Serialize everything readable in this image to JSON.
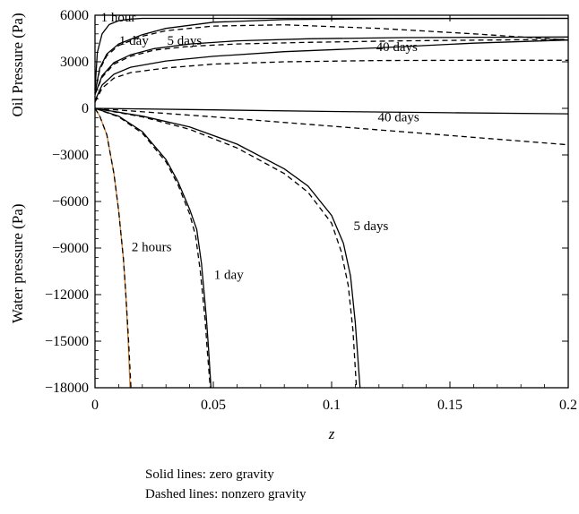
{
  "chart_data": {
    "type": "line",
    "xlabel": "z",
    "xlim": [
      0,
      0.2
    ],
    "x_ticks": [
      "0",
      "0.05",
      "0.1",
      "0.15",
      "0.2"
    ],
    "y_ticks": [
      "6000",
      "3000",
      "0",
      "−3000",
      "−6000",
      "−9000",
      "−12000",
      "−15000",
      "−18000"
    ],
    "ylim": [
      -18000,
      6000
    ],
    "ylabel_upper": "Oil Pressure (Pa)",
    "ylabel_lower": "Water pressure (Pa)",
    "grid": false,
    "annotations": [
      {
        "text": "1 hour",
        "x": 0.0025,
        "y": 5600
      },
      {
        "text": "1 day",
        "x": 0.0102,
        "y": 4100
      },
      {
        "text": "5 days",
        "x": 0.0305,
        "y": 4100
      },
      {
        "text": "40 days",
        "x": 0.1188,
        "y": 3700
      },
      {
        "text": "40 days",
        "x": 0.1195,
        "y": -850
      },
      {
        "text": "5 days",
        "x": 0.1093,
        "y": -7850
      },
      {
        "text": "2 hours",
        "x": 0.0155,
        "y": -9200
      },
      {
        "text": "1 day",
        "x": 0.0503,
        "y": -11000
      }
    ],
    "series": [
      {
        "label": "1 hour",
        "style": "solid",
        "x": [
          0,
          0.001,
          0.003,
          0.006,
          0.01,
          0.015,
          0.02,
          0.2
        ],
        "y": [
          1200,
          3600,
          4800,
          5400,
          5650,
          5750,
          5800,
          5800
        ]
      },
      {
        "label": "1 day",
        "style": "solid",
        "x": [
          0,
          0.002,
          0.005,
          0.01,
          0.02,
          0.03,
          0.05,
          0.08,
          0.12,
          0.2
        ],
        "y": [
          1000,
          2600,
          3500,
          4150,
          4750,
          5150,
          5550,
          5720,
          5780,
          5800
        ]
      },
      {
        "label": "5 days",
        "style": "solid",
        "x": [
          0,
          0.003,
          0.008,
          0.015,
          0.025,
          0.04,
          0.06,
          0.09,
          0.13,
          0.2
        ],
        "y": [
          900,
          2100,
          2950,
          3450,
          3850,
          4150,
          4350,
          4480,
          4560,
          4600
        ]
      },
      {
        "label": "40 days",
        "style": "solid",
        "x": [
          0,
          0.003,
          0.008,
          0.015,
          0.03,
          0.05,
          0.08,
          0.12,
          0.16,
          0.2
        ],
        "y": [
          500,
          1500,
          2200,
          2650,
          3050,
          3350,
          3650,
          3900,
          4200,
          4400
        ]
      },
      {
        "label": "1 day",
        "style": "dashed",
        "x": [
          0,
          0.002,
          0.005,
          0.01,
          0.02,
          0.03,
          0.05,
          0.08,
          0.12,
          0.16,
          0.2
        ],
        "y": [
          1000,
          2500,
          3400,
          4050,
          4650,
          5000,
          5300,
          5380,
          5150,
          4800,
          4400
        ]
      },
      {
        "label": "5 days",
        "style": "dashed",
        "x": [
          0,
          0.003,
          0.008,
          0.015,
          0.025,
          0.04,
          0.06,
          0.09,
          0.13,
          0.2
        ],
        "y": [
          900,
          2000,
          2850,
          3350,
          3750,
          4000,
          4150,
          4250,
          4350,
          4450
        ]
      },
      {
        "label": "40 days",
        "style": "dashed",
        "x": [
          0,
          0.003,
          0.008,
          0.015,
          0.03,
          0.05,
          0.08,
          0.12,
          0.16,
          0.2
        ],
        "y": [
          400,
          1300,
          1950,
          2300,
          2600,
          2850,
          3000,
          3080,
          3100,
          3100
        ]
      },
      {
        "label": "40 days",
        "style": "solid",
        "x": [
          0,
          0.05,
          0.1,
          0.15,
          0.2
        ],
        "y": [
          0,
          -100,
          -200,
          -280,
          -350
        ]
      },
      {
        "label": "40 days",
        "style": "dashed",
        "x": [
          0,
          0.05,
          0.1,
          0.15,
          0.2
        ],
        "y": [
          0,
          -550,
          -1150,
          -1750,
          -2350
        ]
      },
      {
        "label": "2 hours",
        "style": "solid",
        "color": "#d9822b",
        "x": [
          0,
          0.002,
          0.005,
          0.008,
          0.01,
          0.012,
          0.013,
          0.014,
          0.0148
        ],
        "y": [
          0,
          -500,
          -1700,
          -4200,
          -6600,
          -9700,
          -11900,
          -15000,
          -18000
        ]
      },
      {
        "label": "2 hours",
        "style": "dashed",
        "x": [
          0,
          0.002,
          0.005,
          0.008,
          0.01,
          0.012,
          0.013,
          0.0142,
          0.0152
        ],
        "y": [
          0,
          -500,
          -1700,
          -4200,
          -6600,
          -9700,
          -11900,
          -15000,
          -18000
        ]
      },
      {
        "label": "1 day",
        "style": "solid",
        "x": [
          0,
          0.01,
          0.02,
          0.03,
          0.035,
          0.04,
          0.043,
          0.045,
          0.047,
          0.048,
          0.049
        ],
        "y": [
          0,
          -500,
          -1500,
          -3300,
          -4700,
          -6500,
          -7800,
          -10000,
          -13400,
          -15500,
          -18000
        ]
      },
      {
        "label": "1 day",
        "style": "dashed",
        "x": [
          0,
          0.01,
          0.02,
          0.03,
          0.035,
          0.04,
          0.0425,
          0.0445,
          0.0465,
          0.0475,
          0.0487
        ],
        "y": [
          0,
          -550,
          -1600,
          -3450,
          -4900,
          -6800,
          -8200,
          -10500,
          -13600,
          -15700,
          -18000
        ]
      },
      {
        "label": "5 days",
        "style": "solid",
        "x": [
          0,
          0.02,
          0.04,
          0.06,
          0.08,
          0.09,
          0.1,
          0.105,
          0.108,
          0.11,
          0.112
        ],
        "y": [
          0,
          -500,
          -1200,
          -2300,
          -3900,
          -5000,
          -6900,
          -8700,
          -10800,
          -13800,
          -18000
        ]
      },
      {
        "label": "5 days",
        "style": "dashed",
        "x": [
          0,
          0.02,
          0.04,
          0.06,
          0.08,
          0.09,
          0.1,
          0.104,
          0.107,
          0.109,
          0.1105
        ],
        "y": [
          0,
          -550,
          -1350,
          -2550,
          -4200,
          -5400,
          -7400,
          -9200,
          -11400,
          -14300,
          -18000
        ]
      }
    ]
  },
  "legend_notes": {
    "solid": "Solid lines: zero gravity",
    "dashed": "Dashed lines: nonzero gravity"
  }
}
